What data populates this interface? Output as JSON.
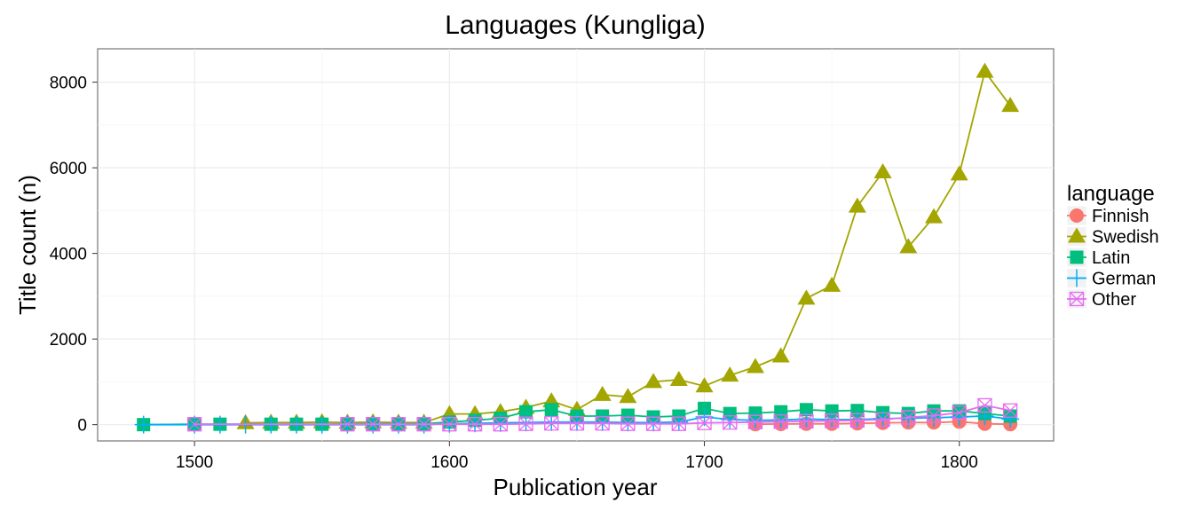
{
  "chart_data": {
    "type": "line",
    "title": "Languages (Kungliga)",
    "xlabel": "Publication year",
    "ylabel": "Title count (n)",
    "xlim": [
      1462,
      1837
    ],
    "ylim": [
      -380,
      8780
    ],
    "xticks": [
      1500,
      1600,
      1700,
      1800
    ],
    "yticks": [
      0,
      2000,
      4000,
      6000,
      8000
    ],
    "grid": true,
    "legend": {
      "title": "language",
      "placement": "right"
    },
    "series": [
      {
        "name": "Finnish",
        "color": "#F8766D",
        "marker": "circle",
        "points": [
          [
            1720,
            10
          ],
          [
            1730,
            15
          ],
          [
            1740,
            20
          ],
          [
            1750,
            20
          ],
          [
            1760,
            30
          ],
          [
            1770,
            40
          ],
          [
            1780,
            50
          ],
          [
            1790,
            50
          ],
          [
            1800,
            70
          ],
          [
            1810,
            20
          ],
          [
            1820,
            10
          ]
        ]
      },
      {
        "name": "Swedish",
        "color": "#A3A500",
        "marker": "triangle",
        "points": [
          [
            1520,
            40
          ],
          [
            1530,
            50
          ],
          [
            1540,
            50
          ],
          [
            1550,
            60
          ],
          [
            1560,
            50
          ],
          [
            1570,
            60
          ],
          [
            1580,
            50
          ],
          [
            1590,
            50
          ],
          [
            1600,
            250
          ],
          [
            1610,
            250
          ],
          [
            1620,
            300
          ],
          [
            1630,
            400
          ],
          [
            1640,
            550
          ],
          [
            1650,
            350
          ],
          [
            1660,
            700
          ],
          [
            1670,
            650
          ],
          [
            1680,
            1000
          ],
          [
            1690,
            1050
          ],
          [
            1700,
            900
          ],
          [
            1710,
            1150
          ],
          [
            1720,
            1350
          ],
          [
            1730,
            1600
          ],
          [
            1740,
            2950
          ],
          [
            1750,
            3250
          ],
          [
            1760,
            5100
          ],
          [
            1770,
            5900
          ],
          [
            1780,
            4150
          ],
          [
            1790,
            4850
          ],
          [
            1800,
            5850
          ],
          [
            1810,
            8250
          ],
          [
            1820,
            7450
          ]
        ]
      },
      {
        "name": "Latin",
        "color": "#00BF7D",
        "marker": "square",
        "points": [
          [
            1480,
            0
          ],
          [
            1500,
            10
          ],
          [
            1510,
            10
          ],
          [
            1530,
            10
          ],
          [
            1540,
            10
          ],
          [
            1550,
            10
          ],
          [
            1560,
            20
          ],
          [
            1570,
            20
          ],
          [
            1580,
            20
          ],
          [
            1590,
            20
          ],
          [
            1600,
            60
          ],
          [
            1610,
            100
          ],
          [
            1620,
            150
          ],
          [
            1630,
            300
          ],
          [
            1640,
            350
          ],
          [
            1650,
            200
          ],
          [
            1660,
            200
          ],
          [
            1670,
            220
          ],
          [
            1680,
            180
          ],
          [
            1690,
            200
          ],
          [
            1700,
            380
          ],
          [
            1710,
            260
          ],
          [
            1720,
            270
          ],
          [
            1730,
            300
          ],
          [
            1740,
            350
          ],
          [
            1750,
            320
          ],
          [
            1760,
            330
          ],
          [
            1770,
            280
          ],
          [
            1780,
            260
          ],
          [
            1790,
            320
          ],
          [
            1800,
            320
          ],
          [
            1810,
            260
          ],
          [
            1820,
            200
          ]
        ]
      },
      {
        "name": "German",
        "color": "#00B0F6",
        "marker": "plus",
        "points": [
          [
            1480,
            0
          ],
          [
            1500,
            0
          ],
          [
            1510,
            0
          ],
          [
            1520,
            0
          ],
          [
            1530,
            0
          ],
          [
            1540,
            0
          ],
          [
            1550,
            0
          ],
          [
            1560,
            0
          ],
          [
            1570,
            0
          ],
          [
            1580,
            0
          ],
          [
            1590,
            0
          ],
          [
            1600,
            20
          ],
          [
            1610,
            30
          ],
          [
            1620,
            40
          ],
          [
            1630,
            50
          ],
          [
            1640,
            60
          ],
          [
            1650,
            60
          ],
          [
            1660,
            60
          ],
          [
            1670,
            50
          ],
          [
            1680,
            50
          ],
          [
            1690,
            60
          ],
          [
            1700,
            180
          ],
          [
            1710,
            120
          ],
          [
            1720,
            100
          ],
          [
            1730,
            110
          ],
          [
            1740,
            130
          ],
          [
            1750,
            120
          ],
          [
            1760,
            120
          ],
          [
            1770,
            140
          ],
          [
            1780,
            150
          ],
          [
            1790,
            160
          ],
          [
            1800,
            180
          ],
          [
            1810,
            200
          ],
          [
            1820,
            130
          ]
        ]
      },
      {
        "name": "Other",
        "color": "#E76BF3",
        "marker": "boxcross",
        "points": [
          [
            1500,
            10
          ],
          [
            1560,
            10
          ],
          [
            1570,
            10
          ],
          [
            1580,
            10
          ],
          [
            1590,
            10
          ],
          [
            1600,
            10
          ],
          [
            1610,
            10
          ],
          [
            1620,
            10
          ],
          [
            1630,
            20
          ],
          [
            1640,
            30
          ],
          [
            1650,
            30
          ],
          [
            1660,
            30
          ],
          [
            1670,
            20
          ],
          [
            1680,
            20
          ],
          [
            1690,
            20
          ],
          [
            1700,
            40
          ],
          [
            1710,
            50
          ],
          [
            1720,
            60
          ],
          [
            1730,
            70
          ],
          [
            1740,
            80
          ],
          [
            1750,
            90
          ],
          [
            1760,
            100
          ],
          [
            1770,
            120
          ],
          [
            1780,
            170
          ],
          [
            1790,
            210
          ],
          [
            1800,
            280
          ],
          [
            1810,
            450
          ],
          [
            1820,
            330
          ]
        ]
      }
    ]
  }
}
